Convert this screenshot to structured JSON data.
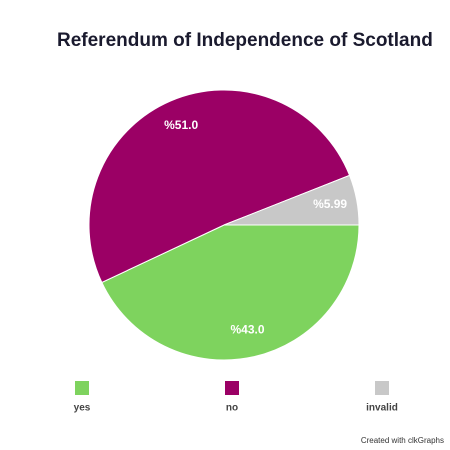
{
  "chart_data": {
    "type": "pie",
    "title": "Referendum of Independence of Scotland",
    "categories": [
      "yes",
      "no",
      "invalid"
    ],
    "values": [
      43.0,
      51.0,
      5.99
    ],
    "value_labels": [
      "%43.0",
      "%51.0",
      "%5.99"
    ],
    "colors": [
      "#7ed35e",
      "#9b0065",
      "#c8c8c8"
    ]
  },
  "footer": "Created with clkGraphs"
}
